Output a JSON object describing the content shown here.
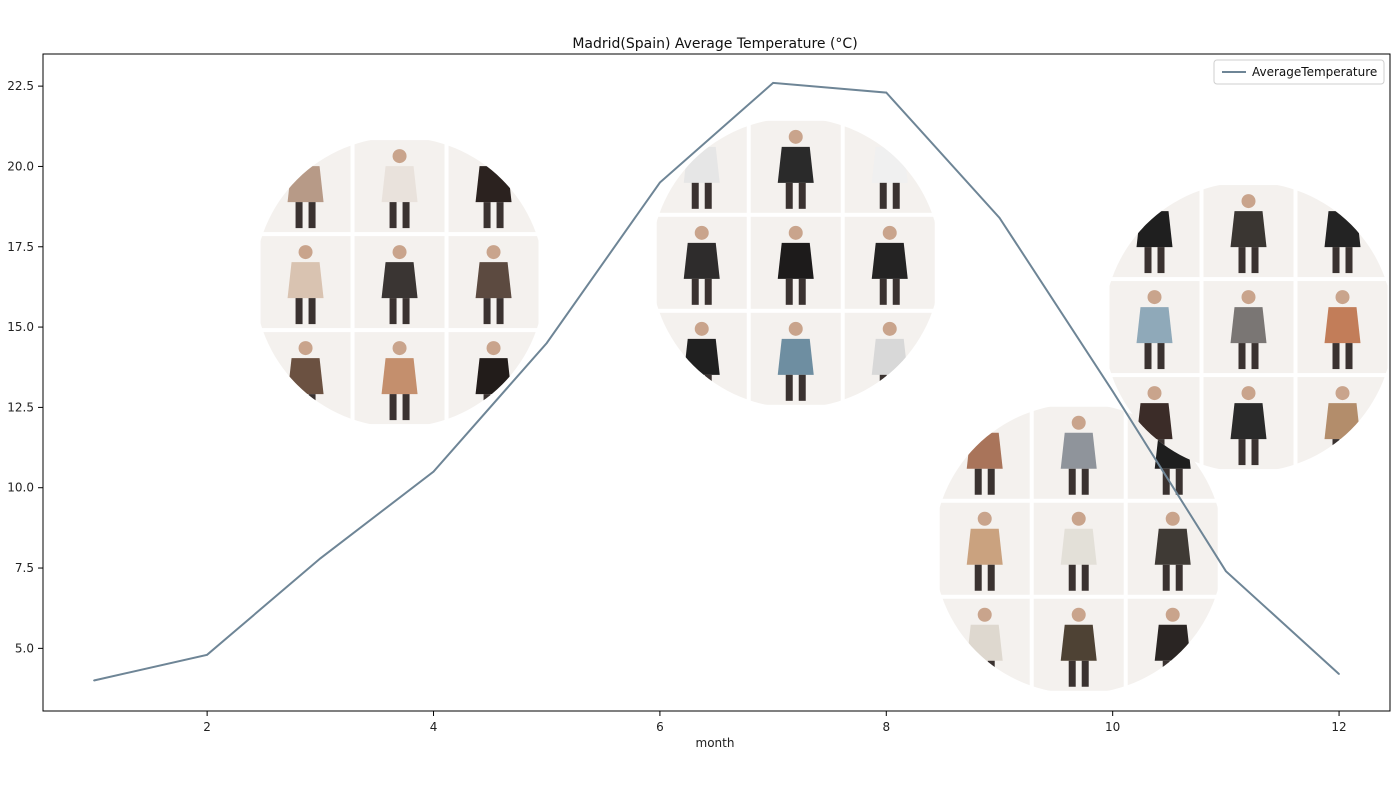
{
  "chart_data": {
    "type": "line",
    "title": "Madrid(Spain) Average Temperature (°C)",
    "xlabel": "month",
    "ylabel": "",
    "xlim": [
      0.55,
      12.45
    ],
    "ylim": [
      3.05,
      23.5
    ],
    "xticks": [
      2,
      4,
      6,
      8,
      10,
      12
    ],
    "yticks": [
      5.0,
      7.5,
      10.0,
      12.5,
      15.0,
      17.5,
      20.0,
      22.5
    ],
    "grid": false,
    "legend_position": "top-right",
    "series": [
      {
        "name": "AverageTemperature",
        "color": "#6e8596",
        "x": [
          1,
          2,
          3,
          4,
          5,
          6,
          7,
          8,
          9,
          10,
          11,
          12
        ],
        "y": [
          4.0,
          4.8,
          7.8,
          10.5,
          14.5,
          19.5,
          22.6,
          22.3,
          18.4,
          13.0,
          7.4,
          4.2
        ]
      }
    ],
    "image_clusters": [
      {
        "name": "spring-outfits-cluster",
        "center_month": 3.7,
        "center_temp": 16.4,
        "rows": 3,
        "cols": 3,
        "palette": [
          "#b79a87",
          "#e9e2dc",
          "#2b221f",
          "#d9c3b1",
          "#3a3533",
          "#5c4a40",
          "#6b5141",
          "#c48f6d",
          "#221c1a"
        ]
      },
      {
        "name": "summer-outfits-cluster",
        "center_month": 7.2,
        "center_temp": 17.0,
        "rows": 3,
        "cols": 3,
        "palette": [
          "#e6e6e6",
          "#2a2a2a",
          "#f0f0f0",
          "#2e2c2c",
          "#1d1b1b",
          "#242323",
          "#202020",
          "#6e8ea1",
          "#d8d8d8"
        ]
      },
      {
        "name": "autumn-outfits-cluster",
        "center_month": 9.7,
        "center_temp": 8.1,
        "rows": 3,
        "cols": 3,
        "palette": [
          "#a9745a",
          "#8f949b",
          "#1e1e1e",
          "#caa27f",
          "#e3e0d8",
          "#3f3a35",
          "#ded8cf",
          "#4e4234",
          "#2a2523"
        ]
      },
      {
        "name": "winter-outfits-cluster",
        "center_month": 11.2,
        "center_temp": 15.0,
        "rows": 3,
        "cols": 3,
        "palette": [
          "#1f1f1f",
          "#3a3632",
          "#232323",
          "#8fa9b9",
          "#7a7674",
          "#c27d59",
          "#3b2c28",
          "#2a2a2a",
          "#b38d6b"
        ]
      }
    ]
  }
}
